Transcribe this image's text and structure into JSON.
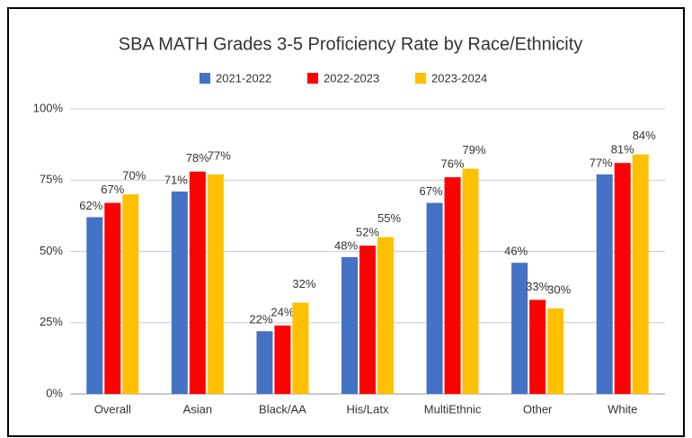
{
  "chart_data": {
    "type": "bar",
    "title": "SBA MATH Grades 3-5 Proficiency Rate by Race/Ethnicity",
    "categories": [
      "Overall",
      "Asian",
      "Black/AA",
      "His/Latx",
      "MultiEthnic",
      "Other",
      "White"
    ],
    "series": [
      {
        "name": "2021-2022",
        "color": "#4472c4",
        "label_color": "#6d8fd8",
        "values": [
          62,
          71,
          22,
          48,
          67,
          46,
          77
        ],
        "value_labels": [
          "62%",
          "71%",
          "22%",
          "48%",
          "67%",
          "46%",
          "77%"
        ]
      },
      {
        "name": "2022-2023",
        "color": "#ff0000",
        "label_color": "#ff3b3b",
        "values": [
          67,
          78,
          24,
          52,
          76,
          33,
          81
        ],
        "value_labels": [
          "67%",
          "78%",
          "24%",
          "52%",
          "76%",
          "33%",
          "81%"
        ]
      },
      {
        "name": "2023-2024",
        "color": "#ffc000",
        "label_color": "#222222",
        "values": [
          70,
          77,
          32,
          55,
          79,
          30,
          84
        ],
        "value_labels": [
          "70%",
          "77%",
          "32%",
          "55%",
          "79%",
          "30%",
          "84%"
        ]
      }
    ],
    "ylim": [
      0,
      100
    ],
    "yticks": [
      {
        "value": 0,
        "label": "0%"
      },
      {
        "value": 25,
        "label": "25%"
      },
      {
        "value": 50,
        "label": "50%"
      },
      {
        "value": 75,
        "label": "75%"
      },
      {
        "value": 100,
        "label": "100%"
      }
    ],
    "grid": true,
    "legend": "top"
  }
}
